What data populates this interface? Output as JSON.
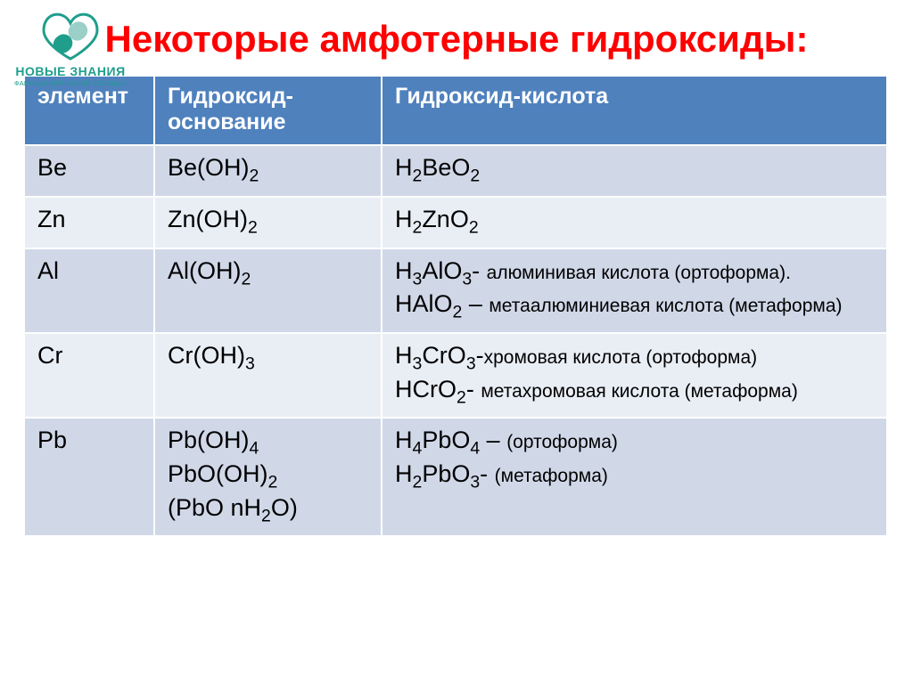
{
  "logo": {
    "brand_top": "НОВЫЕ ЗНАНИЯ",
    "brand_sub": "ФАРМАЦЕВТИЧЕСКИЙ КОЛЛЕДЖ",
    "pill_top_color": "#1f9e8c",
    "pill_bottom_color": "#9ad0c8",
    "text_color": "#1f9e8c"
  },
  "title": {
    "text": "Некоторые амфотерные гидроксиды:",
    "color": "#ff0000"
  },
  "table": {
    "header_bg": "#4f81bd",
    "header_color": "#ffffff",
    "row_alt_a": "#d0d8e8",
    "row_alt_b": "#e9edf4",
    "text_color": "#000000",
    "columns": [
      "элемент",
      "Гидроксид-основание",
      "Гидроксид-кислота"
    ],
    "rows": [
      {
        "element": "Be",
        "base": "Be(OH)<sub>2</sub>",
        "acid": "H<sub>2</sub>BeO<sub>2</sub>"
      },
      {
        "element": "Zn",
        "base": "Zn(OH)<sub>2</sub>",
        "acid": "H<sub>2</sub>ZnO<sub>2</sub>"
      },
      {
        "element": "Al",
        "base": "Al(OH)<sub>2</sub>",
        "acid": "H<sub>3</sub>AlO<sub>3</sub>- <span class=\"desc\">алюминивая кислота (ортоформа).</span><br>HAlO<sub>2</sub> – <span class=\"desc\">метаалюминиевая кислота (метаформа)</span>"
      },
      {
        "element": "Cr",
        "base": "Cr(OH)<sub>3</sub>",
        "acid": "H<sub>3</sub>CrO<sub>3</sub>-<span class=\"desc\">хромовая кислота (ортоформа)</span><br>HCrO<sub>2</sub>- <span class=\"desc\">метахромовая кислота (метаформа)</span>"
      },
      {
        "element": "Pb",
        "base": "Pb(OH)<sub>4</sub><br>PbO(OH)<sub>2</sub><br>(PbO nH<sub>2</sub>O)",
        "acid": "H<sub>4</sub>PbO<sub>4</sub> – <span class=\"desc\">(ортоформа)</span><br>H<sub>2</sub>PbO<sub>3</sub>- <span class=\"desc\">(метаформа)</span>"
      }
    ]
  }
}
